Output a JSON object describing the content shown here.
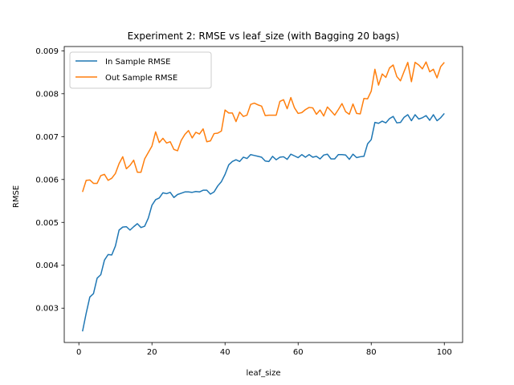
{
  "chart_data": {
    "type": "line",
    "title": "Experiment 2: RMSE vs leaf_size (with Bagging 20 bags)",
    "xlabel": "leaf_size",
    "ylabel": "RMSE",
    "xlim": [
      -4,
      105
    ],
    "ylim": [
      0.0022,
      0.0091
    ],
    "xticks": [
      0,
      20,
      40,
      60,
      80,
      100
    ],
    "xtick_labels": [
      "0",
      "20",
      "40",
      "60",
      "80",
      "100"
    ],
    "yticks": [
      0.003,
      0.004,
      0.005,
      0.006,
      0.007,
      0.008,
      0.009
    ],
    "ytick_labels": [
      "0.003",
      "0.004",
      "0.005",
      "0.006",
      "0.007",
      "0.008",
      "0.009"
    ],
    "grid": false,
    "legend_position": "upper-left",
    "x": [
      1,
      2,
      3,
      4,
      5,
      6,
      7,
      8,
      9,
      10,
      11,
      12,
      13,
      14,
      15,
      16,
      17,
      18,
      19,
      20,
      21,
      22,
      23,
      24,
      25,
      26,
      27,
      28,
      29,
      30,
      31,
      32,
      33,
      34,
      35,
      36,
      37,
      38,
      39,
      40,
      41,
      42,
      43,
      44,
      45,
      46,
      47,
      48,
      49,
      50,
      51,
      52,
      53,
      54,
      55,
      56,
      57,
      58,
      59,
      60,
      61,
      62,
      63,
      64,
      65,
      66,
      67,
      68,
      69,
      70,
      71,
      72,
      73,
      74,
      75,
      76,
      77,
      78,
      79,
      80,
      81,
      82,
      83,
      84,
      85,
      86,
      87,
      88,
      89,
      90,
      91,
      92,
      93,
      94,
      95,
      96,
      97,
      98,
      99,
      100
    ],
    "series": [
      {
        "name": "In Sample RMSE",
        "color": "#1f77b4",
        "values": [
          0.00246,
          0.00288,
          0.00326,
          0.00334,
          0.0037,
          0.00378,
          0.00412,
          0.00425,
          0.00424,
          0.00445,
          0.00482,
          0.00489,
          0.0049,
          0.00482,
          0.0049,
          0.00497,
          0.00488,
          0.00491,
          0.0051,
          0.0054,
          0.00553,
          0.00557,
          0.00569,
          0.00567,
          0.0057,
          0.00558,
          0.00565,
          0.00568,
          0.00571,
          0.00571,
          0.0057,
          0.00572,
          0.00571,
          0.00575,
          0.00575,
          0.00566,
          0.00571,
          0.00585,
          0.00595,
          0.00612,
          0.00634,
          0.00642,
          0.00646,
          0.00642,
          0.00652,
          0.00649,
          0.00658,
          0.00656,
          0.00654,
          0.00652,
          0.00643,
          0.00642,
          0.00654,
          0.00646,
          0.00652,
          0.00653,
          0.00647,
          0.00659,
          0.00655,
          0.00651,
          0.00658,
          0.00652,
          0.00658,
          0.00652,
          0.00654,
          0.00648,
          0.00657,
          0.00659,
          0.00648,
          0.00648,
          0.00658,
          0.00658,
          0.00657,
          0.00647,
          0.00659,
          0.00651,
          0.00653,
          0.00654,
          0.00683,
          0.00693,
          0.00733,
          0.00731,
          0.00736,
          0.00732,
          0.00742,
          0.00747,
          0.00732,
          0.00733,
          0.00745,
          0.00751,
          0.00737,
          0.00751,
          0.00741,
          0.00744,
          0.00749,
          0.00738,
          0.00751,
          0.00737,
          0.00744,
          0.00754
        ]
      },
      {
        "name": "Out Sample RMSE",
        "color": "#ff7f0e",
        "values": [
          0.00571,
          0.00598,
          0.00599,
          0.00591,
          0.00591,
          0.00609,
          0.00612,
          0.00598,
          0.00603,
          0.00614,
          0.00637,
          0.00653,
          0.00625,
          0.00633,
          0.00645,
          0.00617,
          0.00617,
          0.00648,
          0.00663,
          0.00678,
          0.00711,
          0.00686,
          0.00696,
          0.00685,
          0.00688,
          0.0067,
          0.00667,
          0.00691,
          0.00705,
          0.00714,
          0.00697,
          0.0071,
          0.00706,
          0.00718,
          0.00688,
          0.0069,
          0.00707,
          0.00708,
          0.00713,
          0.00762,
          0.00755,
          0.00755,
          0.00735,
          0.00757,
          0.00747,
          0.0075,
          0.00775,
          0.00778,
          0.00774,
          0.00771,
          0.00749,
          0.0075,
          0.0075,
          0.0075,
          0.00782,
          0.00786,
          0.00765,
          0.00791,
          0.00767,
          0.00754,
          0.00756,
          0.00763,
          0.00768,
          0.00767,
          0.00752,
          0.00762,
          0.00748,
          0.00769,
          0.0076,
          0.0075,
          0.00763,
          0.00777,
          0.00758,
          0.00752,
          0.00776,
          0.00754,
          0.00753,
          0.00789,
          0.00788,
          0.00806,
          0.00857,
          0.0082,
          0.00846,
          0.00838,
          0.0086,
          0.00867,
          0.0084,
          0.0083,
          0.00852,
          0.00873,
          0.00828,
          0.00873,
          0.00867,
          0.00858,
          0.00874,
          0.00851,
          0.00857,
          0.00837,
          0.00863,
          0.00873
        ]
      }
    ]
  }
}
